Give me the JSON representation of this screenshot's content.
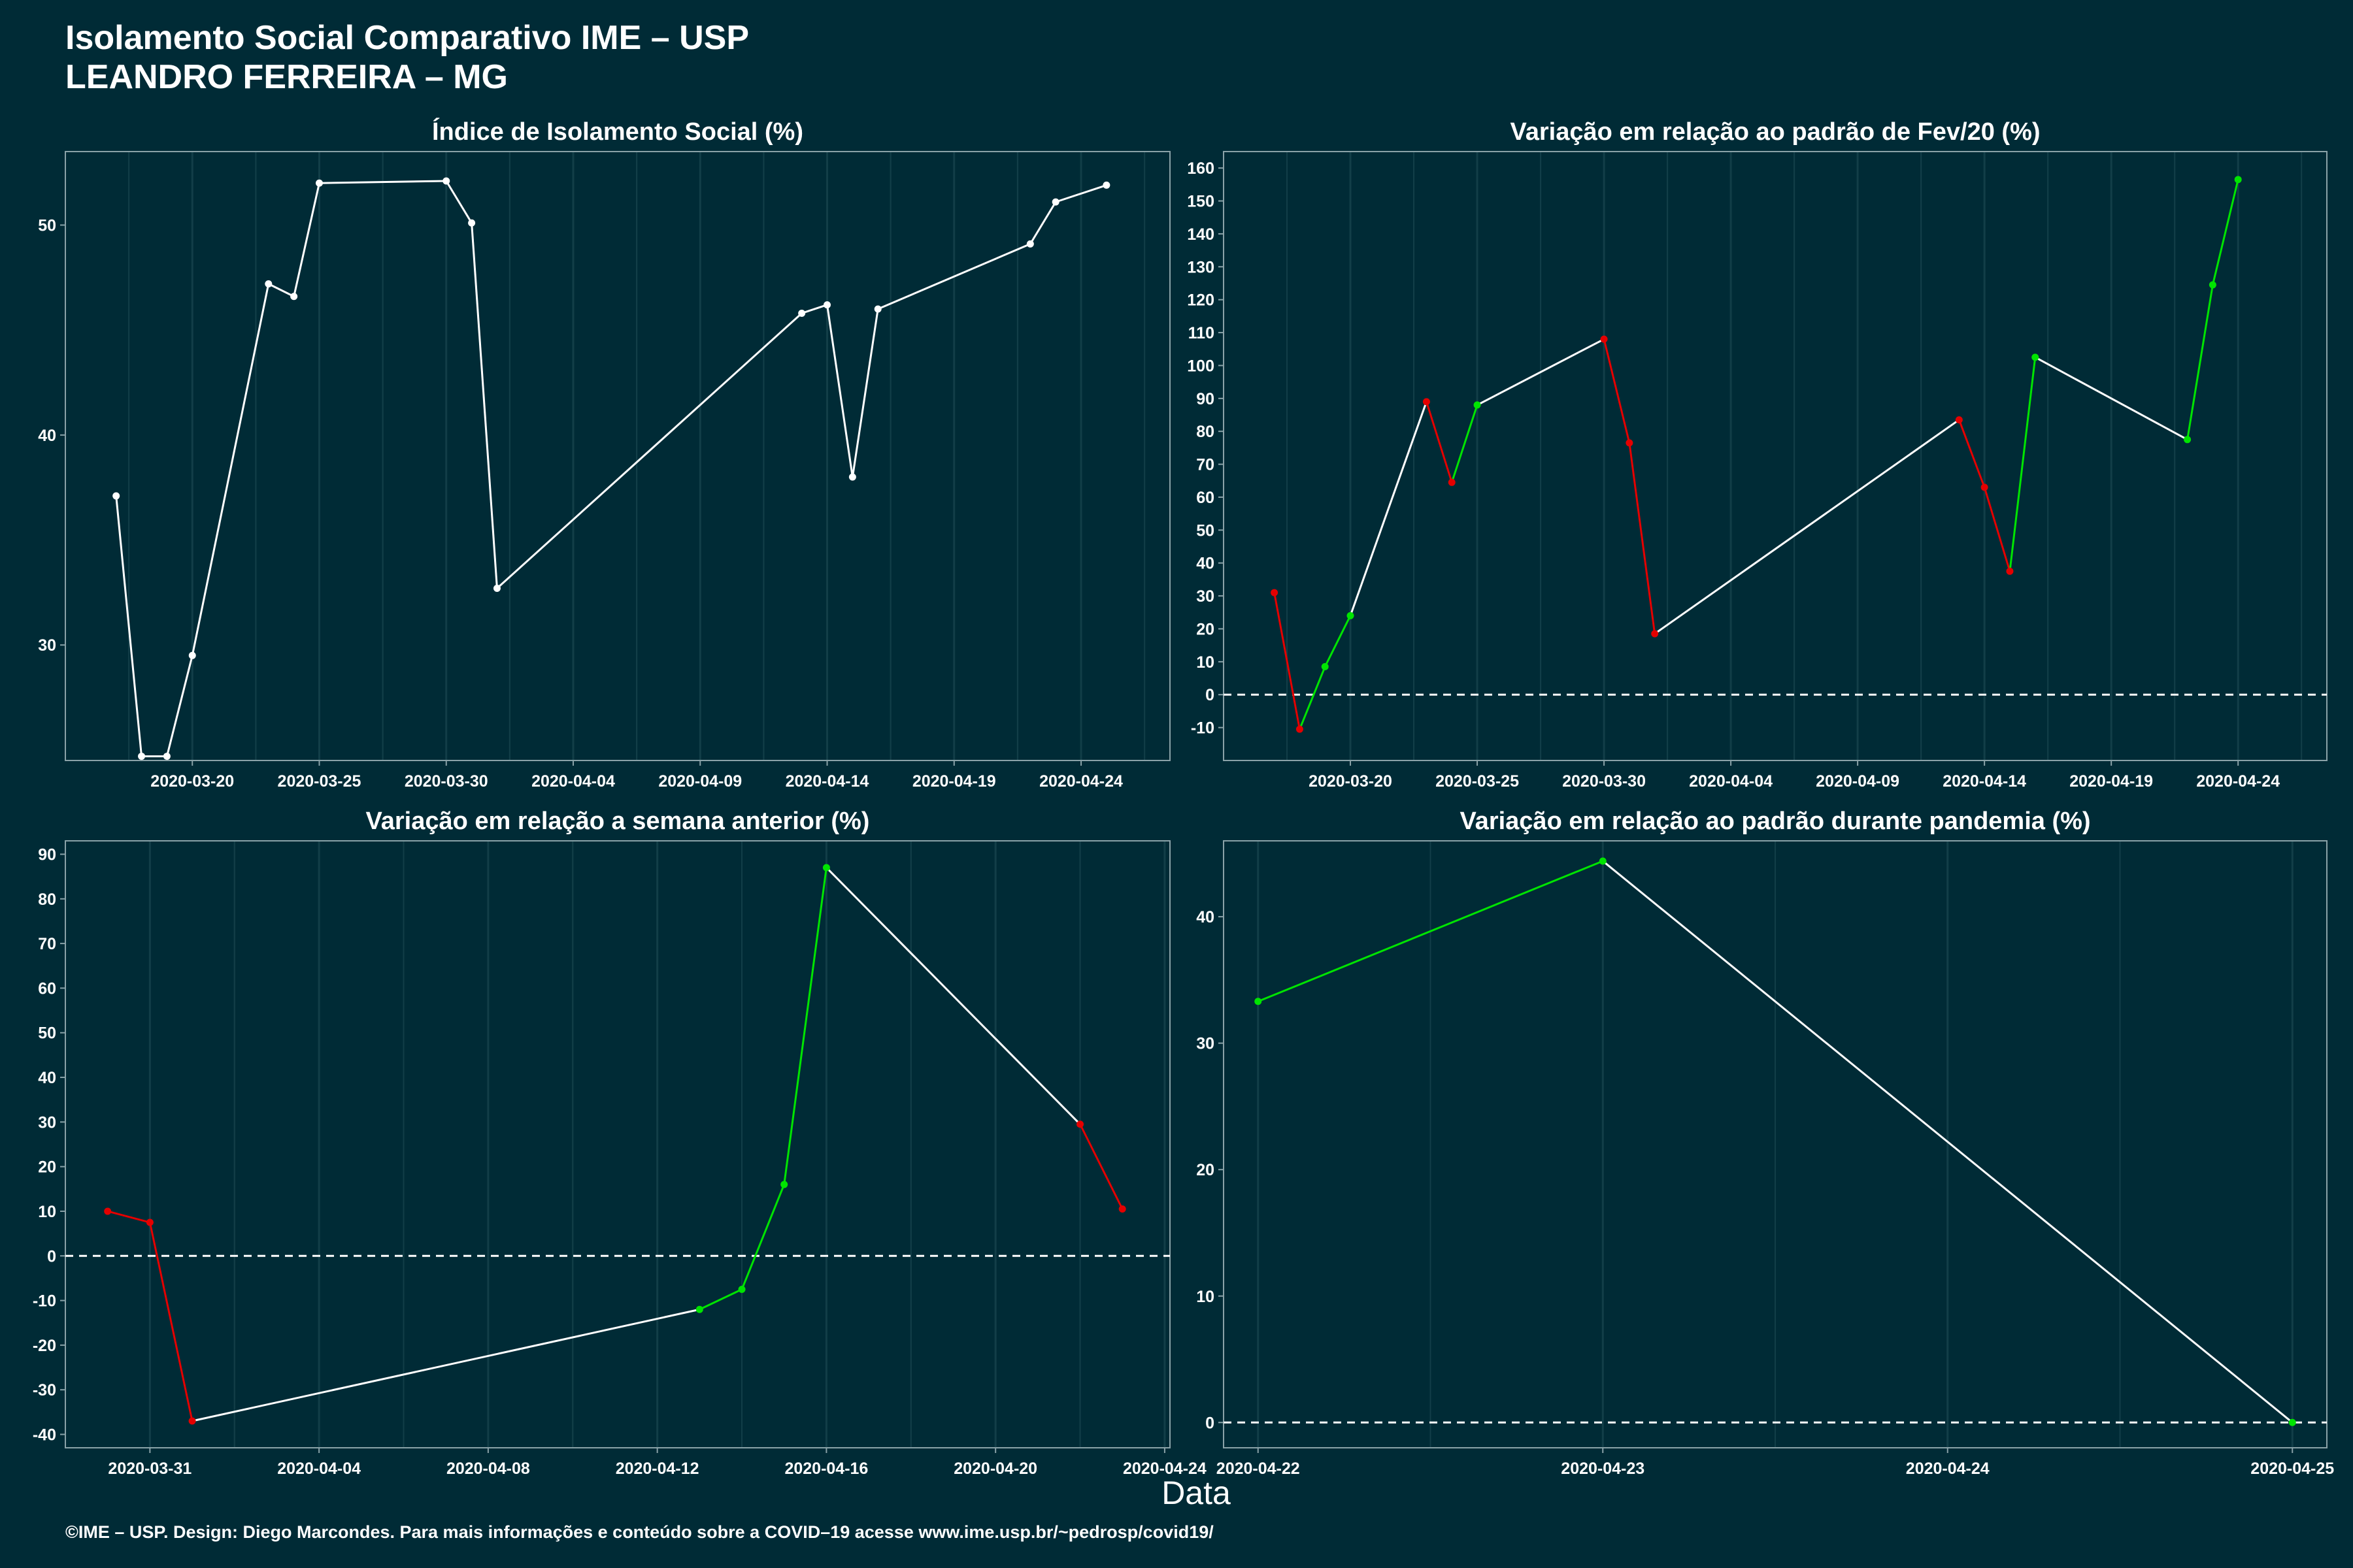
{
  "page": {
    "title_line1": "Isolamento Social Comparativo IME – USP",
    "title_line2": "LEANDRO FERREIRA – MG",
    "x_axis_label": "Data",
    "footer": "©IME – USP. Design: Diego Marcondes. Para mais informações e conteúdo sobre a COVID–19 acesse www.ime.usp.br/~pedrosp/covid19/"
  },
  "colors": {
    "background": "#002b36",
    "grid": "#123e48",
    "line": "#ffffff",
    "positive": "#00e400",
    "negative": "#e40000"
  },
  "chart_data": [
    {
      "type": "line",
      "title": "Índice de Isolamento Social (%)",
      "x_type": "date",
      "ylim": [
        24.5,
        53.5
      ],
      "y_ticks": [
        30,
        40,
        50
      ],
      "x_ticks": [
        "2020-03-20",
        "2020-03-25",
        "2020-03-30",
        "2020-04-04",
        "2020-04-09",
        "2020-04-14",
        "2020-04-19",
        "2020-04-24"
      ],
      "xlim": [
        "2020-03-15T00:00",
        "2020-04-27T12:00"
      ],
      "zero_line": false,
      "colored": false,
      "x": [
        "2020-03-17",
        "2020-03-18",
        "2020-03-19",
        "2020-03-20",
        "2020-03-23",
        "2020-03-24",
        "2020-03-25",
        "2020-03-30",
        "2020-03-31",
        "2020-04-01",
        "2020-04-13",
        "2020-04-14",
        "2020-04-15",
        "2020-04-16",
        "2020-04-22",
        "2020-04-23",
        "2020-04-25"
      ],
      "y": [
        37.1,
        24.7,
        24.7,
        29.5,
        47.2,
        46.6,
        52.0,
        52.1,
        50.1,
        32.7,
        45.8,
        46.2,
        38.0,
        46.0,
        49.1,
        51.1,
        51.9
      ]
    },
    {
      "type": "line",
      "title": "Variação em relação ao padrão de Fev/20 (%)",
      "x_type": "date",
      "ylim": [
        -20,
        165
      ],
      "y_ticks": [
        -10,
        0,
        10,
        20,
        30,
        40,
        50,
        60,
        70,
        80,
        90,
        100,
        110,
        120,
        130,
        140,
        150,
        160
      ],
      "x_ticks": [
        "2020-03-20",
        "2020-03-25",
        "2020-03-30",
        "2020-04-04",
        "2020-04-09",
        "2020-04-14",
        "2020-04-19",
        "2020-04-24"
      ],
      "xlim": [
        "2020-03-15T00:00",
        "2020-04-27T12:00"
      ],
      "zero_line": true,
      "colored": true,
      "x": [
        "2020-03-17",
        "2020-03-18",
        "2020-03-19",
        "2020-03-20",
        "2020-03-23",
        "2020-03-24",
        "2020-03-25",
        "2020-03-30",
        "2020-03-31",
        "2020-04-01",
        "2020-04-13",
        "2020-04-14",
        "2020-04-15",
        "2020-04-16",
        "2020-04-22",
        "2020-04-23",
        "2020-04-24"
      ],
      "y": [
        31.0,
        -10.5,
        8.5,
        24.0,
        89.0,
        64.5,
        88.0,
        108.0,
        76.5,
        18.5,
        83.5,
        63.0,
        37.5,
        102.5,
        77.5,
        124.5,
        156.5
      ]
    },
    {
      "type": "line",
      "title": "Variação em relação a semana anterior (%)",
      "x_type": "date",
      "ylim": [
        -43,
        93
      ],
      "y_ticks": [
        -40,
        -30,
        -20,
        -10,
        0,
        10,
        20,
        30,
        40,
        50,
        60,
        70,
        80,
        90
      ],
      "x_ticks": [
        "2020-03-31",
        "2020-04-04",
        "2020-04-08",
        "2020-04-12",
        "2020-04-16",
        "2020-04-20",
        "2020-04-24"
      ],
      "xlim": [
        "2020-03-29T00:00",
        "2020-04-24T03:00"
      ],
      "zero_line": true,
      "colored": true,
      "x": [
        "2020-03-30",
        "2020-03-31",
        "2020-04-01",
        "2020-04-13",
        "2020-04-14",
        "2020-04-15",
        "2020-04-16",
        "2020-04-22",
        "2020-04-23"
      ],
      "y": [
        10.0,
        7.5,
        -37.0,
        -12.0,
        -7.5,
        16.0,
        87.0,
        29.5,
        10.5
      ]
    },
    {
      "type": "line",
      "title": "Variação em relação ao padrão durante pandemia (%)",
      "x_type": "date",
      "ylim": [
        -2,
        46
      ],
      "y_ticks": [
        0,
        10,
        20,
        30,
        40
      ],
      "x_ticks": [
        "2020-04-22",
        "2020-04-23",
        "2020-04-24",
        "2020-04-25"
      ],
      "xlim": [
        "2020-04-21T21:36",
        "2020-04-25T02:24"
      ],
      "zero_line": true,
      "colored": true,
      "x": [
        "2020-04-22",
        "2020-04-23",
        "2020-04-25"
      ],
      "y": [
        33.3,
        44.4,
        0.0
      ]
    }
  ]
}
